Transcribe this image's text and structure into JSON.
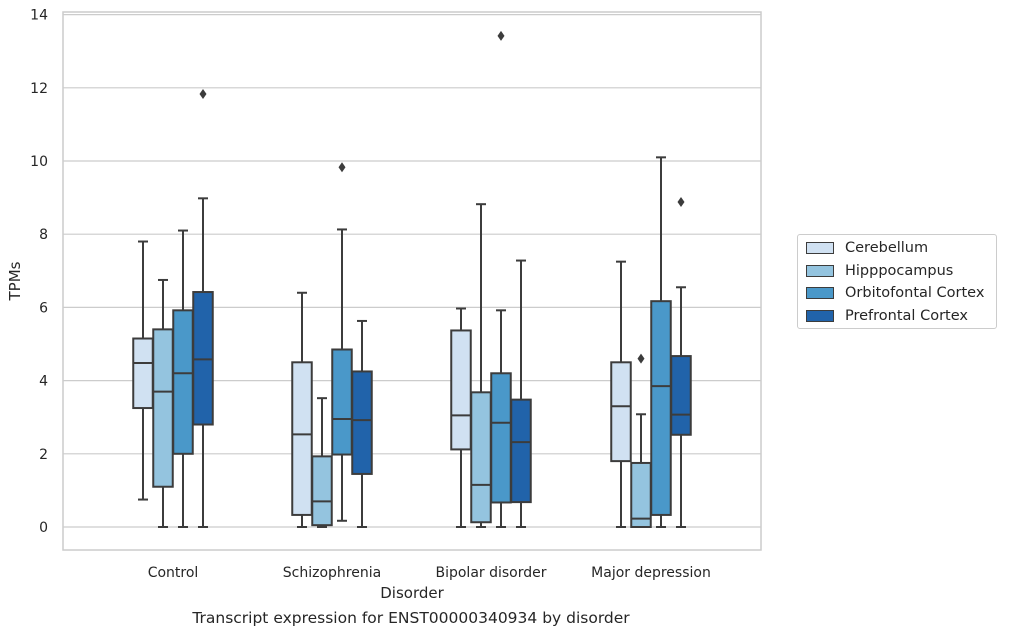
{
  "chart_data": {
    "type": "box",
    "caption": "Transcript expression for ENST00000340934 by disorder",
    "xlabel": "Disorder",
    "ylabel": "TPMs",
    "ylim": [
      -0.6,
      14.1
    ],
    "yticks": [
      0,
      2,
      4,
      6,
      8,
      10,
      12,
      14
    ],
    "grid": "horizontal",
    "legend_position": "right",
    "categories": [
      "Control",
      "Schizophrenia",
      "Bipolar disorder",
      "Major depression"
    ],
    "series": [
      {
        "name": "Cerebellum",
        "color": "#d0e1f2",
        "boxes": [
          {
            "whislo": 0.75,
            "q1": 3.25,
            "med": 4.48,
            "q3": 5.15,
            "whishi": 7.8,
            "fliers": []
          },
          {
            "whislo": 0.0,
            "q1": 0.33,
            "med": 2.53,
            "q3": 4.5,
            "whishi": 6.4,
            "fliers": []
          },
          {
            "whislo": 0.0,
            "q1": 2.12,
            "med": 3.05,
            "q3": 5.37,
            "whishi": 5.97,
            "fliers": []
          },
          {
            "whislo": 0.0,
            "q1": 1.8,
            "med": 3.3,
            "q3": 4.5,
            "whishi": 7.25,
            "fliers": []
          }
        ]
      },
      {
        "name": "Hipppocampus",
        "color": "#94c4df",
        "boxes": [
          {
            "whislo": 0.0,
            "q1": 1.1,
            "med": 3.7,
            "q3": 5.4,
            "whishi": 6.75,
            "fliers": []
          },
          {
            "whislo": 0.0,
            "q1": 0.05,
            "med": 0.7,
            "q3": 1.93,
            "whishi": 3.52,
            "fliers": []
          },
          {
            "whislo": 0.0,
            "q1": 0.13,
            "med": 1.15,
            "q3": 3.68,
            "whishi": 8.82,
            "fliers": []
          },
          {
            "whislo": 0.0,
            "q1": 0.0,
            "med": 0.23,
            "q3": 1.75,
            "whishi": 3.08,
            "fliers": [
              4.6
            ]
          }
        ]
      },
      {
        "name": "Orbitofontal Cortex",
        "color": "#4a98c9",
        "boxes": [
          {
            "whislo": 0.0,
            "q1": 2.0,
            "med": 4.2,
            "q3": 5.92,
            "whishi": 8.1,
            "fliers": []
          },
          {
            "whislo": 0.17,
            "q1": 1.98,
            "med": 2.95,
            "q3": 4.85,
            "whishi": 8.13,
            "fliers": [
              9.83
            ]
          },
          {
            "whislo": 0.0,
            "q1": 0.67,
            "med": 2.85,
            "q3": 4.2,
            "whishi": 5.92,
            "fliers": [
              13.42
            ]
          },
          {
            "whislo": 0.0,
            "q1": 0.33,
            "med": 3.85,
            "q3": 6.17,
            "whishi": 10.1,
            "fliers": []
          }
        ]
      },
      {
        "name": "Prefrontal Cortex",
        "color": "#2163aa",
        "boxes": [
          {
            "whislo": 0.0,
            "q1": 2.8,
            "med": 4.58,
            "q3": 6.42,
            "whishi": 8.98,
            "fliers": [
              11.83
            ]
          },
          {
            "whislo": 0.0,
            "q1": 1.45,
            "med": 2.92,
            "q3": 4.25,
            "whishi": 5.63,
            "fliers": []
          },
          {
            "whislo": 0.0,
            "q1": 0.68,
            "med": 2.32,
            "q3": 3.48,
            "whishi": 7.28,
            "fliers": []
          },
          {
            "whislo": 0.0,
            "q1": 2.52,
            "med": 3.07,
            "q3": 4.67,
            "whishi": 6.55,
            "fliers": [
              8.88
            ]
          }
        ]
      }
    ]
  }
}
